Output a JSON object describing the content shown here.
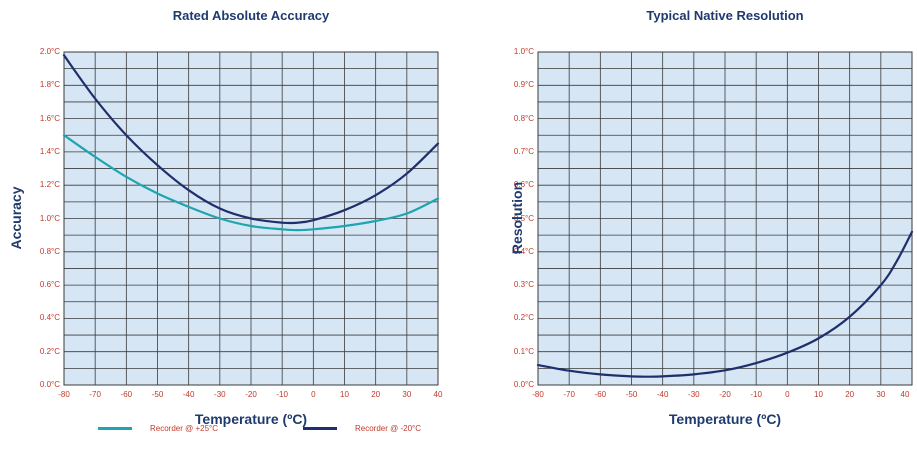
{
  "colors": {
    "plot_background": "#d6e6f5",
    "grid": "#3a3a3a",
    "series_warm": "#1ea5b0",
    "series_cold": "#1f2f6b",
    "title": "#1f3a6e",
    "tick_label": "#c0392b"
  },
  "chart_data": [
    {
      "type": "line",
      "title": "Rated Absolute Accuracy",
      "xlabel": "Temperature (ºC)",
      "ylabel": "Accuracy",
      "xlim": [
        -80,
        40
      ],
      "ylim": [
        0,
        2.0
      ],
      "xticks": [
        "-80",
        "-70",
        "-60",
        "-50",
        "-40",
        "-30",
        "-20",
        "-10",
        "0",
        "10",
        "20",
        "30",
        "40"
      ],
      "yticks": [
        "0.0°C",
        "0.2°C",
        "0.4°C",
        "0.6°C",
        "0.8°C",
        "1.0°C",
        "1.2°C",
        "1.4°C",
        "1.6°C",
        "1.8°C",
        "2.0°C"
      ],
      "grid": true,
      "legend_position": "bottom",
      "series": [
        {
          "name": "Recorder @ +25°C",
          "x": [
            -80,
            -70,
            -60,
            -50,
            -40,
            -30,
            -20,
            -10,
            -5,
            0,
            10,
            20,
            30,
            40
          ],
          "y": [
            1.5,
            1.37,
            1.25,
            1.15,
            1.07,
            1.0,
            0.955,
            0.935,
            0.93,
            0.935,
            0.955,
            0.985,
            1.03,
            1.12
          ]
        },
        {
          "name": "Recorder @ -20°C",
          "x": [
            -80,
            -70,
            -60,
            -50,
            -40,
            -30,
            -20,
            -10,
            -5,
            0,
            10,
            20,
            30,
            40
          ],
          "y": [
            1.98,
            1.72,
            1.5,
            1.32,
            1.17,
            1.06,
            1.0,
            0.975,
            0.975,
            0.99,
            1.05,
            1.14,
            1.27,
            1.45
          ]
        }
      ]
    },
    {
      "type": "line",
      "title": "Typical Native Resolution",
      "xlabel": "Temperature (ºC)",
      "ylabel": "Resolution",
      "xlim": [
        -80,
        40
      ],
      "ylim": [
        0,
        1.0
      ],
      "xticks": [
        "-80",
        "-70",
        "-60",
        "-50",
        "-40",
        "-30",
        "-20",
        "-10",
        "0",
        "10",
        "20",
        "30",
        "40"
      ],
      "yticks": [
        "0.0°C",
        "0.1°C",
        "0.2°C",
        "0.3°C",
        "0.4°C",
        "0.5°C",
        "0.6°C",
        "0.7°C",
        "0.8°C",
        "0.9°C",
        "1.0°C"
      ],
      "grid": true,
      "series": [
        {
          "x": [
            -80,
            -70,
            -60,
            -50,
            -45,
            -40,
            -30,
            -20,
            -10,
            0,
            10,
            20,
            30,
            35,
            40
          ],
          "y": [
            0.06,
            0.043,
            0.032,
            0.026,
            0.025,
            0.026,
            0.032,
            0.044,
            0.066,
            0.097,
            0.14,
            0.205,
            0.3,
            0.37,
            0.46
          ]
        }
      ]
    }
  ]
}
